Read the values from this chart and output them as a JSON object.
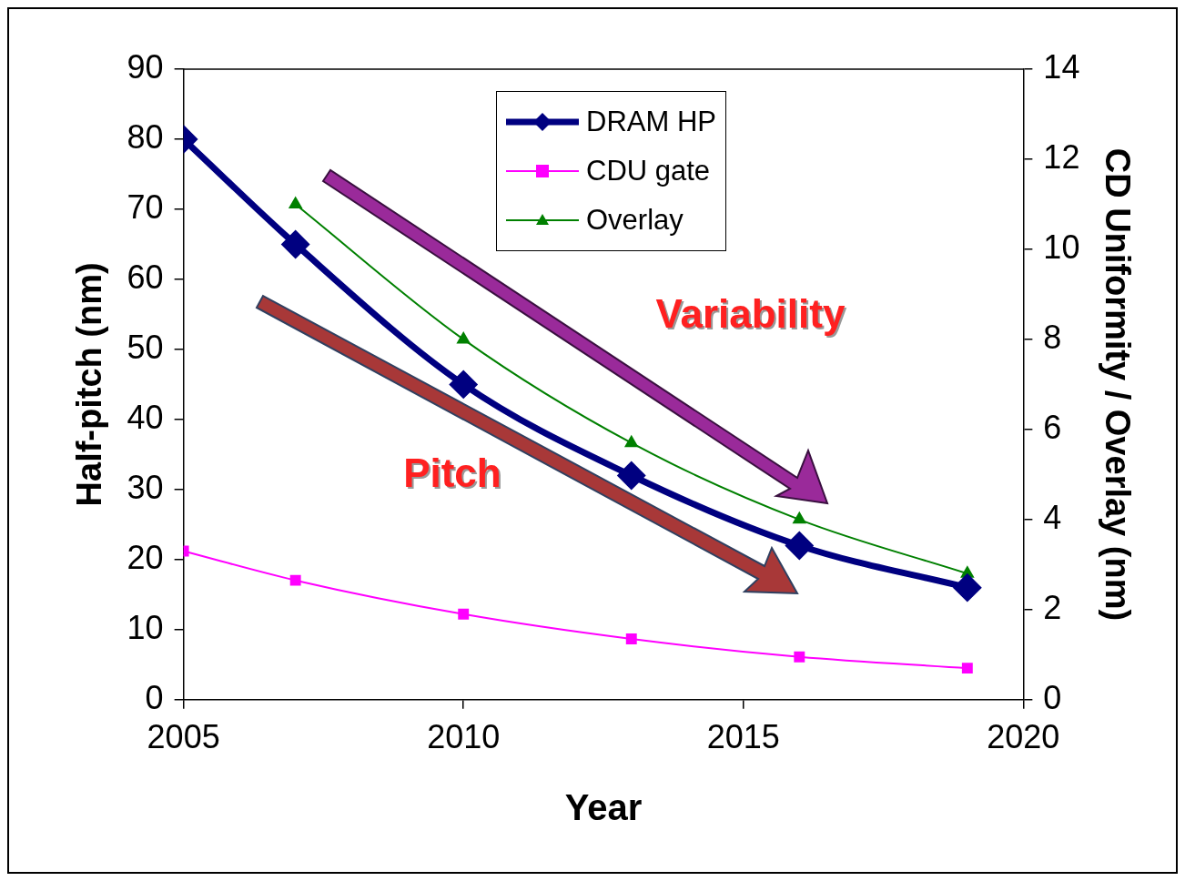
{
  "chart_data": {
    "type": "line",
    "xlabel": "Year",
    "ylabel": "Half-pitch (nm)",
    "y2label": "CD Uniformity / Overlay (nm)",
    "xlim": [
      2005,
      2020
    ],
    "xticks": [
      2005,
      2010,
      2015,
      2020
    ],
    "ylim": [
      0,
      90
    ],
    "yticks": [
      0,
      10,
      20,
      30,
      40,
      50,
      60,
      70,
      80,
      90
    ],
    "y2lim": [
      0,
      14
    ],
    "y2ticks": [
      0,
      2,
      4,
      6,
      8,
      10,
      12,
      14
    ],
    "grid": false,
    "legend": "top",
    "series": [
      {
        "name": "DRAM HP",
        "color": "#000080",
        "marker": "diamond",
        "x": [
          2005,
          2007,
          2010,
          2013,
          2016,
          2019
        ],
        "values": [
          80,
          65,
          45,
          32,
          22,
          16
        ]
      },
      {
        "name": "CDU gate",
        "color": "#ff00ff",
        "marker": "square",
        "axis": "y2",
        "x": [
          2005,
          2007,
          2010,
          2013,
          2016,
          2019
        ],
        "values": [
          3.3,
          2.65,
          1.9,
          1.35,
          0.95,
          0.7
        ]
      },
      {
        "name": "Overlay",
        "color": "#008000",
        "marker": "triangle",
        "axis": "y2",
        "x": [
          2007,
          2010,
          2013,
          2016,
          2019
        ],
        "values": [
          11,
          8,
          5.7,
          4,
          2.8
        ]
      }
    ],
    "annotations": [
      "Variability",
      "Pitch"
    ]
  }
}
